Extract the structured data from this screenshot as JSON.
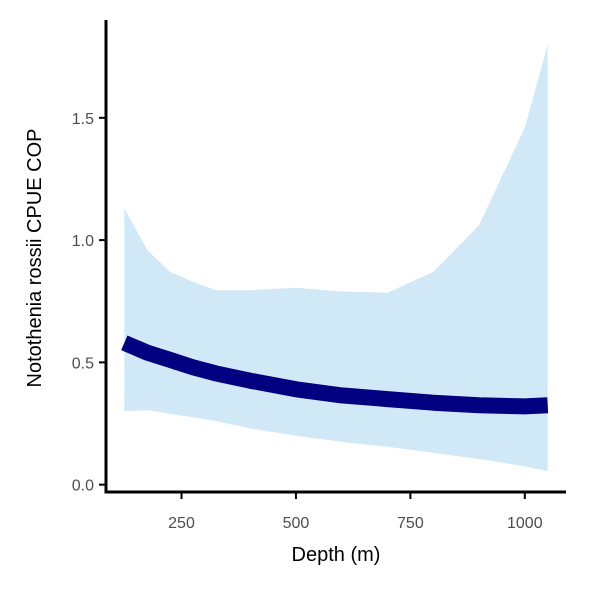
{
  "chart_data": {
    "type": "line",
    "title": "",
    "xlabel": "Depth (m)",
    "ylabel": "Notothenia rossii  CPUE COP",
    "xlim": [
      85,
      1090
    ],
    "ylim": [
      -0.03,
      1.9
    ],
    "x_ticks": [
      250,
      500,
      750,
      1000
    ],
    "x_tick_labels": [
      "250",
      "500",
      "750",
      "1000"
    ],
    "y_ticks": [
      0.0,
      0.5,
      1.0,
      1.5
    ],
    "y_tick_labels": [
      "0.0",
      "0.5",
      "1.0",
      "1.5"
    ],
    "grid": false,
    "legend": "none",
    "series": [
      {
        "x": [
          125,
          175,
          225,
          275,
          325,
          400,
          500,
          600,
          700,
          800,
          900,
          1000,
          1050
        ],
        "y": [
          0.58,
          0.54,
          0.51,
          0.48,
          0.455,
          0.425,
          0.39,
          0.365,
          0.35,
          0.335,
          0.325,
          0.32,
          0.325
        ],
        "lower": [
          0.3,
          0.305,
          0.29,
          0.275,
          0.26,
          0.23,
          0.2,
          0.175,
          0.155,
          0.13,
          0.105,
          0.075,
          0.055
        ],
        "upper": [
          1.13,
          0.96,
          0.87,
          0.83,
          0.795,
          0.795,
          0.805,
          0.79,
          0.785,
          0.87,
          1.06,
          1.46,
          1.8
        ]
      }
    ],
    "colors": {
      "line": "#000080",
      "ribbon": "#d1e9f7",
      "axis": "#000000",
      "tick_text": "#4d4d4d"
    }
  }
}
